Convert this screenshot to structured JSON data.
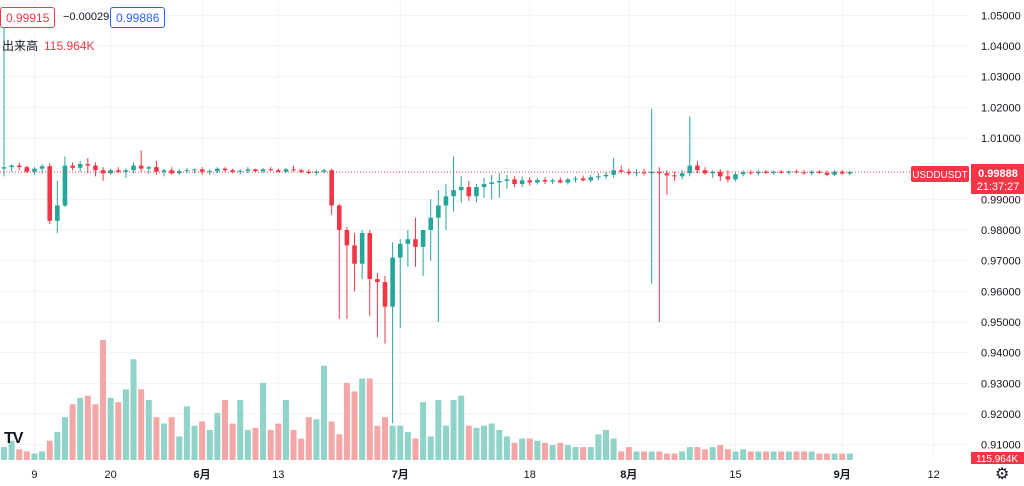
{
  "header": {
    "sell_price": "0.99915",
    "change": "−0.00029",
    "buy_price": "0.99886"
  },
  "volume_legend": {
    "label": "出来高",
    "value": "115.964K"
  },
  "price_axis": {
    "ticks": [
      "1.05000",
      "1.04000",
      "1.03000",
      "1.02000",
      "1.01000",
      "0.99000",
      "0.98000",
      "0.97000",
      "0.96000",
      "0.95000",
      "0.94000",
      "0.93000",
      "0.92000",
      "0.91000"
    ]
  },
  "price_marker": {
    "symbol": "USDDUSDT",
    "price": "0.99888",
    "countdown": "21:37:27"
  },
  "volume_marker": "115.964K",
  "time_axis": {
    "labels": [
      "9",
      "20",
      "6月",
      "13",
      "7月",
      "18",
      "8月",
      "15",
      "9月",
      "12"
    ],
    "bold": [
      false,
      false,
      true,
      false,
      true,
      false,
      true,
      false,
      true,
      false
    ]
  },
  "colors": {
    "up": "#26a69a",
    "down": "#f23645",
    "vol_up": "#8fd3c9",
    "vol_down": "#f5a6a6",
    "grid": "#f0f3fa"
  },
  "chart_data": {
    "type": "candlestick",
    "series_interval": "daily",
    "ylim": [
      0.905,
      1.055
    ],
    "x_labels": [
      "9",
      "20",
      "6月",
      "13",
      "7月",
      "18",
      "8月",
      "15",
      "9月",
      "12"
    ],
    "last_price": 0.99888,
    "candles": [
      [
        1.0,
        1.047,
        0.9975,
        1.0005
      ],
      [
        1.0005,
        1.0015,
        0.999,
        1.001
      ],
      [
        1.001,
        1.002,
        0.9995,
        1.0005
      ],
      [
        1.0005,
        1.001,
        0.9985,
        0.999
      ],
      [
        0.999,
        1.0005,
        0.998,
        1.0
      ],
      [
        1.0,
        1.0015,
        0.9985,
        1.0008
      ],
      [
        1.0008,
        1.0018,
        0.982,
        0.983
      ],
      [
        0.983,
        0.996,
        0.979,
        0.988
      ],
      [
        0.988,
        1.004,
        0.9875,
        1.001
      ],
      [
        1.001,
        1.002,
        0.9995,
        1.0003
      ],
      [
        1.0003,
        1.0025,
        0.999,
        1.0015
      ],
      [
        1.0015,
        1.0035,
        0.9985,
        1.001
      ],
      [
        1.001,
        1.002,
        0.9975,
        0.9995
      ],
      [
        0.9995,
        1.0005,
        0.996,
        0.9985
      ],
      [
        0.9985,
        1.0,
        0.998,
        0.9995
      ],
      [
        0.9995,
        1.0005,
        0.9985,
        0.999
      ],
      [
        0.999,
        1.0,
        0.997,
        0.9995
      ],
      [
        0.9995,
        1.002,
        0.9985,
        1.001
      ],
      [
        1.001,
        1.006,
        0.999,
        1.0
      ],
      [
        1.0,
        1.001,
        0.9985,
        1.0005
      ],
      [
        1.0005,
        1.0025,
        0.998,
        0.999
      ],
      [
        0.999,
        1.0,
        0.9975,
        0.9995
      ],
      [
        0.9995,
        1.0005,
        0.998,
        0.9985
      ],
      [
        0.9985,
        0.9998,
        0.998,
        0.9992
      ],
      [
        0.9992,
        1.0003,
        0.9985,
        0.9995
      ],
      [
        0.9995,
        1.0,
        0.9985,
        0.9998
      ],
      [
        0.9998,
        1.0005,
        0.998,
        0.999
      ],
      [
        0.999,
        0.9998,
        0.998,
        0.9992
      ],
      [
        0.9992,
        1.0005,
        0.9985,
        1.0
      ],
      [
        1.0,
        1.0005,
        0.999,
        0.9995
      ],
      [
        0.9995,
        1.0,
        0.9985,
        0.999
      ],
      [
        0.999,
        0.9998,
        0.9982,
        0.9993
      ],
      [
        0.9993,
        1.0005,
        0.9985,
        0.9998
      ],
      [
        0.9998,
        1.0,
        0.9988,
        0.9992
      ],
      [
        0.9992,
        1.0002,
        0.9985,
        0.9998
      ],
      [
        0.9998,
        1.0005,
        0.9992,
        0.9995
      ],
      [
        0.9995,
        1.0,
        0.9988,
        0.999
      ],
      [
        0.999,
        1.0003,
        0.9985,
        0.9998
      ],
      [
        0.9998,
        1.001,
        0.999,
        0.9995
      ],
      [
        0.9995,
        1.0,
        0.9985,
        0.999
      ],
      [
        0.999,
        0.9998,
        0.9982,
        0.9986
      ],
      [
        0.9986,
        0.9996,
        0.9978,
        0.999
      ],
      [
        0.999,
        1.0,
        0.9985,
        0.9995
      ],
      [
        0.9995,
        1.0,
        0.985,
        0.988
      ],
      [
        0.988,
        0.9885,
        0.951,
        0.98
      ],
      [
        0.98,
        0.981,
        0.951,
        0.975
      ],
      [
        0.975,
        0.979,
        0.96,
        0.969
      ],
      [
        0.969,
        0.98,
        0.964,
        0.979
      ],
      [
        0.979,
        0.98,
        0.952,
        0.964
      ],
      [
        0.964,
        0.966,
        0.945,
        0.963
      ],
      [
        0.963,
        0.965,
        0.943,
        0.955
      ],
      [
        0.955,
        0.976,
        0.917,
        0.971
      ],
      [
        0.971,
        0.977,
        0.948,
        0.9755
      ],
      [
        0.9755,
        0.98,
        0.968,
        0.977
      ],
      [
        0.977,
        0.984,
        0.968,
        0.9745
      ],
      [
        0.9745,
        0.98,
        0.965,
        0.98
      ],
      [
        0.98,
        0.99,
        0.97,
        0.984
      ],
      [
        0.984,
        0.993,
        0.95,
        0.988
      ],
      [
        0.988,
        0.995,
        0.98,
        0.991
      ],
      [
        0.991,
        1.004,
        0.986,
        0.993
      ],
      [
        0.993,
        0.9975,
        0.989,
        0.994
      ],
      [
        0.994,
        0.996,
        0.9895,
        0.991
      ],
      [
        0.991,
        0.995,
        0.989,
        0.994
      ],
      [
        0.994,
        0.997,
        0.9905,
        0.995
      ],
      [
        0.995,
        0.998,
        0.99,
        0.9955
      ],
      [
        0.9955,
        0.9985,
        0.9905,
        0.996
      ],
      [
        0.996,
        0.998,
        0.9935,
        0.9965
      ],
      [
        0.9965,
        0.9975,
        0.994,
        0.995
      ],
      [
        0.995,
        0.9975,
        0.994,
        0.9962
      ],
      [
        0.9962,
        0.9972,
        0.9945,
        0.9955
      ],
      [
        0.9955,
        0.9968,
        0.9948,
        0.9963
      ],
      [
        0.9963,
        0.9972,
        0.995,
        0.9958
      ],
      [
        0.9958,
        0.9968,
        0.995,
        0.9962
      ],
      [
        0.9962,
        0.9972,
        0.9952,
        0.9955
      ],
      [
        0.9955,
        0.997,
        0.9948,
        0.9965
      ],
      [
        0.9965,
        0.9975,
        0.9955,
        0.9968
      ],
      [
        0.9968,
        0.9978,
        0.9958,
        0.9962
      ],
      [
        0.9962,
        0.998,
        0.9955,
        0.9972
      ],
      [
        0.9972,
        0.9985,
        0.9962,
        0.9975
      ],
      [
        0.9975,
        0.999,
        0.9965,
        0.998
      ],
      [
        0.998,
        1.0035,
        0.997,
        0.9995
      ],
      [
        0.9995,
        1.001,
        0.9985,
        0.999
      ],
      [
        0.999,
        1.0,
        0.9978,
        0.9985
      ],
      [
        0.9985,
        0.9998,
        0.9975,
        0.9988
      ],
      [
        0.9988,
        1.0,
        0.9978,
        0.9985
      ],
      [
        0.9985,
        1.0195,
        0.9625,
        0.999
      ],
      [
        0.999,
        1.0005,
        0.95,
        0.9985
      ],
      [
        0.9985,
        0.9995,
        0.9915,
        0.9978
      ],
      [
        0.9978,
        0.999,
        0.996,
        0.9975
      ],
      [
        0.9975,
        0.9995,
        0.9965,
        0.9985
      ],
      [
        0.9985,
        1.017,
        0.9975,
        1.001
      ],
      [
        1.001,
        1.0025,
        0.9985,
        0.9995
      ],
      [
        0.9995,
        1.0005,
        0.998,
        0.9985
      ],
      [
        0.9985,
        0.9995,
        0.997,
        0.999
      ],
      [
        0.999,
        0.9998,
        0.996,
        0.9975
      ],
      [
        0.9975,
        0.9995,
        0.9955,
        0.9965
      ],
      [
        0.9965,
        0.9988,
        0.9958,
        0.9982
      ],
      [
        0.9982,
        0.9995,
        0.9975,
        0.9988
      ],
      [
        0.9988,
        0.9995,
        0.998,
        0.9985
      ],
      [
        0.9985,
        0.9995,
        0.9978,
        0.999
      ],
      [
        0.999,
        0.9996,
        0.9982,
        0.9986
      ],
      [
        0.9986,
        0.9994,
        0.998,
        0.999
      ],
      [
        0.999,
        0.9996,
        0.9983,
        0.9987
      ],
      [
        0.9987,
        0.9995,
        0.998,
        0.9991
      ],
      [
        0.9991,
        0.9997,
        0.9985,
        0.9988
      ],
      [
        0.9988,
        0.9996,
        0.998,
        0.9985
      ],
      [
        0.9985,
        0.9995,
        0.9978,
        0.999
      ],
      [
        0.999,
        0.9996,
        0.9983,
        0.9986
      ],
      [
        0.9986,
        0.9994,
        0.9975,
        0.998
      ],
      [
        0.998,
        0.9995,
        0.9976,
        0.999
      ],
      [
        0.999,
        0.9996,
        0.998,
        0.9984
      ],
      [
        0.9984,
        0.9993,
        0.9978,
        0.9989
      ]
    ],
    "volumes": [
      6,
      9,
      5,
      4,
      3,
      4,
      9,
      13,
      20,
      26,
      29,
      30,
      26,
      56,
      29,
      27,
      33,
      47,
      33,
      28,
      20,
      17,
      20,
      11,
      25,
      16,
      18,
      14,
      22,
      28,
      17,
      28,
      14,
      15,
      36,
      14,
      17,
      28,
      14,
      10,
      20,
      19,
      44,
      18,
      12,
      36,
      32,
      38,
      38,
      16,
      20,
      16,
      16,
      13,
      10,
      27,
      11,
      28,
      16,
      28,
      30,
      16,
      15,
      16,
      17,
      14,
      11,
      8,
      10,
      10,
      9,
      8,
      7,
      8,
      7,
      6,
      6,
      6,
      12,
      14,
      10,
      4,
      6,
      4,
      4,
      4,
      4,
      3,
      3,
      4,
      6,
      6,
      5,
      6,
      7,
      5,
      4,
      5,
      4,
      4,
      4,
      4,
      4,
      4,
      4,
      4,
      4,
      3,
      3,
      3,
      3,
      3
    ]
  }
}
